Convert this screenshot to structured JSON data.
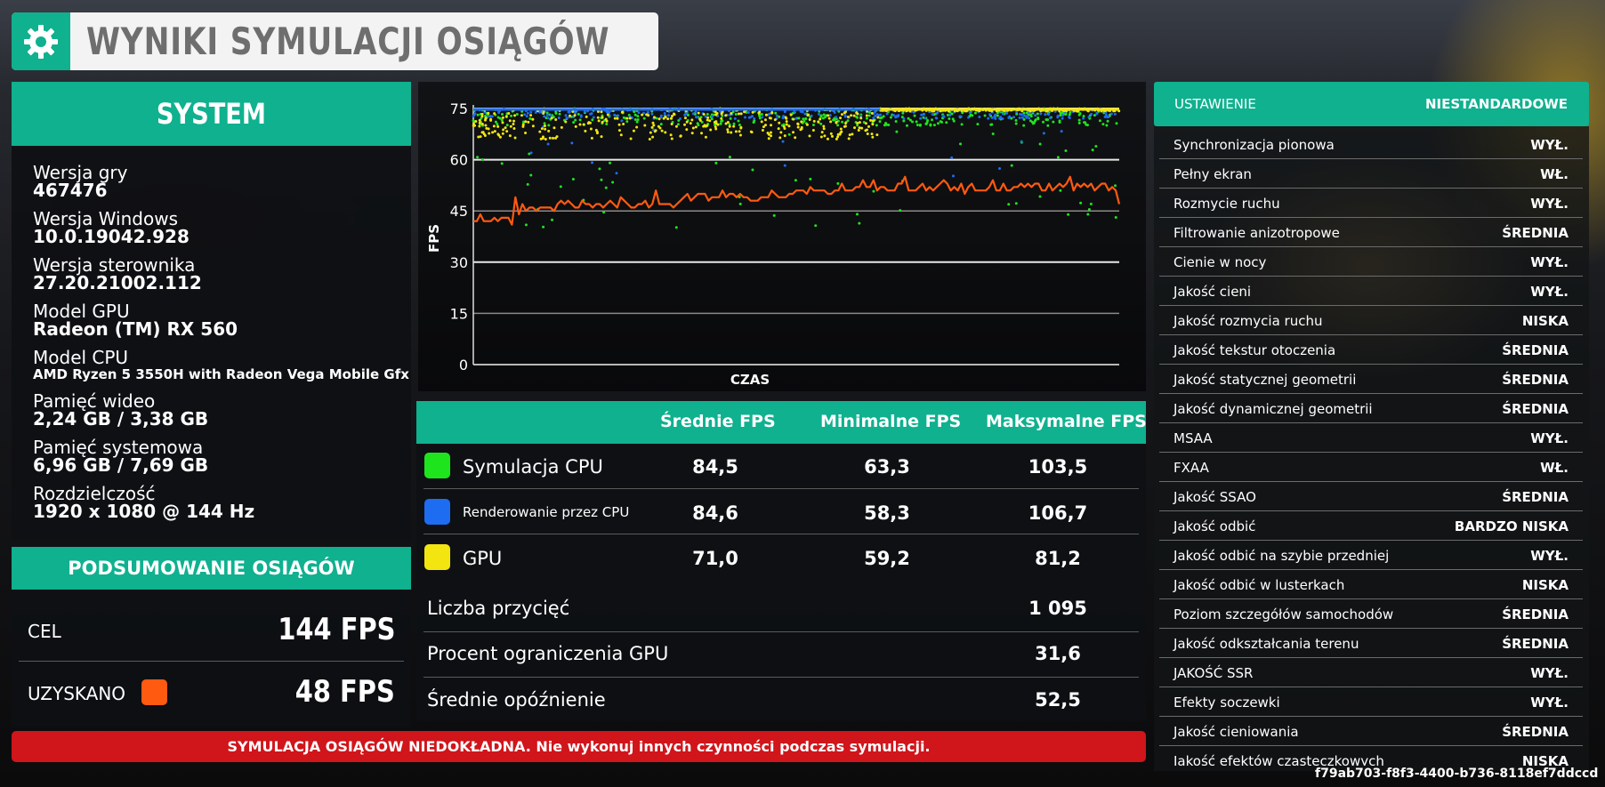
{
  "title": {
    "text": "WYNIKI SYMULACJI OSIĄGÓW",
    "icon": "gear-icon"
  },
  "system": {
    "heading": "SYSTEM",
    "items": [
      {
        "label": "Wersja gry",
        "value": "467476"
      },
      {
        "label": "Wersja Windows",
        "value": "10.0.19042.928"
      },
      {
        "label": "Wersja sterownika",
        "value": "27.20.21002.112"
      },
      {
        "label": "Model GPU",
        "value": "Radeon (TM) RX 560"
      },
      {
        "label": "Model CPU",
        "value": "AMD Ryzen 5 3550H with Radeon Vega Mobile Gfx"
      },
      {
        "label": "Pamięć wideo",
        "value": "2,24 GB / 3,38 GB"
      },
      {
        "label": "Pamięć systemowa",
        "value": "6,96 GB / 7,69 GB"
      },
      {
        "label": "Rozdzielczość",
        "value": "1920 x 1080 @ 144 Hz"
      }
    ]
  },
  "summary": {
    "heading": "PODSUMOWANIE OSIĄGÓW",
    "target_label": "CEL",
    "target_value": "144 FPS",
    "achieved_label": "UZYSKANO",
    "achieved_value": "48 FPS",
    "achieved_color": "#ff5a10"
  },
  "fps_table": {
    "columns": [
      "Średnie FPS",
      "Minimalne FPS",
      "Maksymalne FPS"
    ],
    "rows": [
      {
        "name": "Symulacja CPU",
        "color": "#1ee41e",
        "avg": "84,5",
        "min": "63,3",
        "max": "103,5"
      },
      {
        "name": "Renderowanie przez CPU",
        "color": "#1e6cf0",
        "avg": "84,6",
        "min": "58,3",
        "max": "106,7"
      },
      {
        "name": "GPU",
        "color": "#f3e510",
        "avg": "71,0",
        "min": "59,2",
        "max": "81,2"
      }
    ],
    "extra": [
      {
        "label": "Liczba przycięć",
        "value": "1 095"
      },
      {
        "label": "Procent ograniczenia GPU",
        "value": "31,6"
      },
      {
        "label": "Średnie opóźnienie",
        "value": "52,5"
      }
    ]
  },
  "warning": "SYMULACJA OSIĄGÓW NIEDOKŁADNA. Nie wykonuj innych czynności podczas symulacji.",
  "settings": {
    "header_label": "USTAWIENIE",
    "header_value": "NIESTANDARDOWE",
    "rows": [
      {
        "label": "Synchronizacja pionowa",
        "value": "WYŁ."
      },
      {
        "label": "Pełny ekran",
        "value": "WŁ."
      },
      {
        "label": "Rozmycie ruchu",
        "value": "WYŁ."
      },
      {
        "label": "Filtrowanie anizotropowe",
        "value": "ŚREDNIA"
      },
      {
        "label": "Cienie w nocy",
        "value": "WYŁ."
      },
      {
        "label": "Jakość cieni",
        "value": "WYŁ."
      },
      {
        "label": "Jakość rozmycia ruchu",
        "value": "NISKA"
      },
      {
        "label": "Jakość tekstur otoczenia",
        "value": "ŚREDNIA"
      },
      {
        "label": "Jakość statycznej geometrii",
        "value": "ŚREDNIA"
      },
      {
        "label": "Jakość dynamicznej geometrii",
        "value": "ŚREDNIA"
      },
      {
        "label": "MSAA",
        "value": "WYŁ."
      },
      {
        "label": "FXAA",
        "value": "WŁ."
      },
      {
        "label": "Jakość SSAO",
        "value": "ŚREDNIA"
      },
      {
        "label": "Jakość odbić",
        "value": "BARDZO NISKA"
      },
      {
        "label": "Jakość odbić na szybie przedniej",
        "value": "WYŁ."
      },
      {
        "label": "Jakość odbić w lusterkach",
        "value": "NISKA"
      },
      {
        "label": "Poziom szczegółów samochodów",
        "value": "ŚREDNIA"
      },
      {
        "label": "Jakość odkształcania terenu",
        "value": "ŚREDNIA"
      },
      {
        "label": "JAKOŚĆ SSR",
        "value": "WYŁ."
      },
      {
        "label": "Efekty soczewki",
        "value": "WYŁ."
      },
      {
        "label": "Jakość cieniowania",
        "value": "ŚREDNIA"
      },
      {
        "label": "Jakość efektów cząsteczkowych",
        "value": "NISKA"
      }
    ]
  },
  "session_id": "f79ab703-f8f3-4400-b736-8118ef7ddccd",
  "chart_data": {
    "type": "line",
    "xlabel": "CZAS",
    "ylabel": "FPS",
    "ylim": [
      0,
      75
    ],
    "yticks": [
      0,
      15,
      30,
      45,
      60,
      75
    ],
    "grid": true,
    "x_axis_ticks": "none",
    "series": [
      {
        "color": "#ff5a10",
        "kind": "line",
        "values": [
          42,
          42,
          44,
          42,
          42,
          42,
          43,
          42,
          43,
          43,
          43,
          41,
          49,
          44,
          47,
          45,
          46,
          46,
          45,
          46,
          46,
          46,
          46,
          45,
          47,
          48,
          47,
          48,
          47,
          46,
          46,
          48,
          47,
          47,
          46,
          47,
          47,
          46,
          47,
          48,
          47,
          46,
          49,
          48,
          47,
          46,
          46,
          47,
          47,
          48,
          46,
          47,
          51,
          47,
          47,
          47,
          47,
          46,
          47,
          48,
          49,
          50,
          48,
          49,
          50,
          50,
          50,
          48,
          49,
          49,
          49,
          51,
          49,
          50,
          50,
          49,
          50,
          49,
          49,
          48,
          48,
          48,
          49,
          49,
          49,
          51,
          50,
          49,
          49,
          49,
          50,
          50,
          51,
          51,
          51,
          50,
          52,
          51,
          51,
          51,
          51,
          50,
          50,
          51,
          51,
          53,
          51,
          51,
          51,
          52,
          52,
          54,
          52,
          52,
          54,
          51,
          52,
          52,
          51,
          51,
          51,
          53,
          53,
          55,
          51,
          51,
          51,
          52,
          53,
          51,
          52,
          51,
          52,
          53,
          54,
          53,
          51,
          52,
          51,
          53,
          50,
          52,
          53,
          51,
          51,
          51,
          51,
          52,
          54,
          51,
          51,
          53,
          51,
          51,
          52,
          52,
          53,
          52,
          53,
          52,
          53,
          53,
          51,
          51,
          53,
          51,
          52,
          53,
          52,
          53,
          55,
          51,
          53,
          52,
          53,
          52,
          53,
          51,
          52,
          53,
          53,
          51,
          52,
          51,
          47
        ]
      },
      {
        "color": "#1ee41e",
        "kind": "scatter",
        "values": "dense scatter mostly 70-75 with dips down to ~40"
      },
      {
        "color": "#1e6cf0",
        "kind": "scatter",
        "values": "dense scatter mostly 72-75 with dips down to ~55"
      },
      {
        "color": "#f3e510",
        "kind": "scatter",
        "values": "dense scatter mostly 66-75"
      }
    ]
  }
}
